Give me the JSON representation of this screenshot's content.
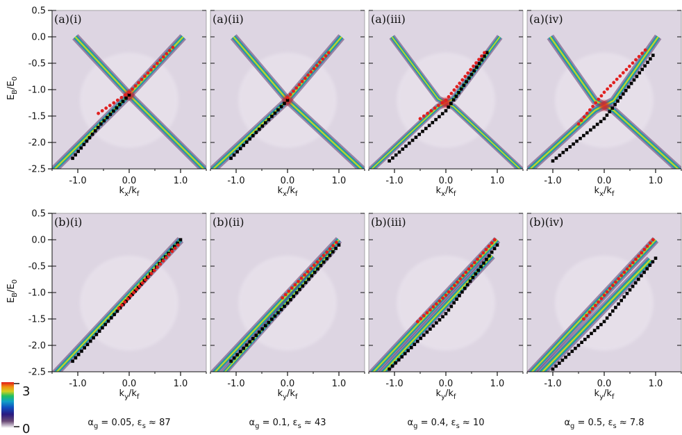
{
  "chart_data": {
    "type": "heatmap",
    "description_kind": "spectral function intensity maps with dispersion markers",
    "y_tick_values": [
      0.5,
      0.0,
      -0.5,
      -1.0,
      -1.5,
      -2.0,
      -2.5
    ],
    "y_tick_labels": [
      "0.5",
      "0.0",
      "-0.5",
      "-1.0",
      "-1.5",
      "-2.0",
      "-2.5"
    ],
    "ylim": [
      -2.5,
      0.5
    ],
    "x_tick_values": [
      -1.0,
      0.0,
      1.0
    ],
    "x_tick_labels": [
      "-1.0",
      "0.0",
      "1.0"
    ],
    "xlim": [
      -1.5,
      1.5
    ],
    "ylabel": {
      "main": "E",
      "sub1": "B",
      "mid": "/E",
      "sub2": "0"
    },
    "row_xlabels": [
      {
        "main1": "k",
        "sub1": "x",
        "mid": "/k",
        "sub2": "f"
      },
      {
        "main1": "k",
        "sub1": "y",
        "mid": "/k",
        "sub2": "f"
      }
    ],
    "columns": [
      {
        "caption": {
          "greek": "α",
          "sub_g": "g",
          "value": " = 0.05, ε",
          "sub_s": "s",
          "tail": " ≈ 87"
        },
        "top_label": "(a)(i)",
        "bottom_label": "(b)(i)",
        "top": {
          "kind": "x",
          "center": -1.1,
          "gap": 0.0,
          "width": 0.06,
          "black": [
            [
              -1.1,
              -2.3
            ],
            [
              -0.55,
              -1.65
            ],
            [
              0.0,
              -1.1
            ]
          ],
          "red": [
            [
              -0.6,
              -1.45
            ],
            [
              0.0,
              -1.05
            ],
            [
              0.85,
              -0.2
            ]
          ]
        },
        "bottom": {
          "kind": "line",
          "black": [
            [
              -1.1,
              -2.3
            ],
            [
              0.0,
              -1.1
            ],
            [
              1.0,
              0.0
            ]
          ],
          "red": [
            [
              -0.2,
              -1.3
            ],
            [
              0.95,
              -0.1
            ]
          ],
          "split": 0.0
        }
      },
      {
        "caption": {
          "greek": "α",
          "sub_g": "g",
          "value": " = 0.1, ε",
          "sub_s": "s",
          "tail": " ≈ 43"
        },
        "top_label": "(a)(ii)",
        "bottom_label": "(b)(ii)",
        "top": {
          "kind": "x",
          "center": -1.2,
          "gap": 0.0,
          "width": 0.06,
          "black": [
            [
              -1.1,
              -2.3
            ],
            [
              0.0,
              -1.2
            ]
          ],
          "red": [
            [
              0.0,
              -1.15
            ],
            [
              0.8,
              -0.3
            ]
          ]
        },
        "bottom": {
          "kind": "line",
          "black": [
            [
              -1.1,
              -2.3
            ],
            [
              0.0,
              -1.2
            ],
            [
              1.0,
              -0.1
            ]
          ],
          "red": [
            [
              -0.1,
              -1.1
            ],
            [
              0.95,
              -0.05
            ]
          ],
          "split": 0.08
        }
      },
      {
        "caption": {
          "greek": "α",
          "sub_g": "g",
          "value": " = 0.4, ε",
          "sub_s": "s",
          "tail": " ≈ 10"
        },
        "top_label": "(a)(iii)",
        "bottom_label": "(b)(iii)",
        "top": {
          "kind": "x",
          "center": -1.25,
          "gap": 0.25,
          "width": 0.05,
          "black": [
            [
              -1.1,
              -2.35
            ],
            [
              0.0,
              -1.4
            ],
            [
              0.8,
              -0.3
            ]
          ],
          "red": [
            [
              -0.5,
              -1.55
            ],
            [
              0.0,
              -1.2
            ],
            [
              0.75,
              -0.3
            ]
          ]
        },
        "bottom": {
          "kind": "line",
          "black": [
            [
              -1.1,
              -2.45
            ],
            [
              0.0,
              -1.4
            ],
            [
              1.0,
              -0.1
            ]
          ],
          "red": [
            [
              -0.55,
              -1.55
            ],
            [
              0.0,
              -1.05
            ],
            [
              0.95,
              0.0
            ]
          ],
          "split": 0.2
        }
      },
      {
        "caption": {
          "greek": "α",
          "sub_g": "g",
          "value": " = 0.5, ε",
          "sub_s": "s",
          "tail": " ≈ 7.8"
        },
        "top_label": "(a)(iv)",
        "bottom_label": "(b)(iv)",
        "top": {
          "kind": "x",
          "center": -1.3,
          "gap": 0.3,
          "width": 0.06,
          "black": [
            [
              -1.0,
              -2.35
            ],
            [
              0.0,
              -1.55
            ],
            [
              0.95,
              -0.35
            ]
          ],
          "red": [
            [
              -0.5,
              -1.65
            ],
            [
              0.0,
              -1.05
            ],
            [
              0.8,
              -0.25
            ]
          ]
        },
        "bottom": {
          "kind": "line",
          "black": [
            [
              -1.0,
              -2.45
            ],
            [
              0.0,
              -1.55
            ],
            [
              1.0,
              -0.35
            ]
          ],
          "red": [
            [
              -0.4,
              -1.5
            ],
            [
              0.0,
              -1.05
            ],
            [
              0.95,
              0.0
            ]
          ],
          "split": 0.28
        }
      }
    ],
    "colorbar": {
      "min_label": "0",
      "max_label": "3",
      "colors": [
        "#ffffff",
        "#5a3a66",
        "#2a1a80",
        "#1050c0",
        "#10a0c8",
        "#20c060",
        "#d0d020",
        "#f09010",
        "#e01818"
      ]
    },
    "colors": {
      "background": "#ddd5e2",
      "band_outer": "#5e3e6e",
      "band_mid": "#1a86b8",
      "band_core": "#38c070",
      "band_hot": "#e8d020",
      "black_marker": "#000000",
      "red_marker": "#e02020"
    }
  }
}
